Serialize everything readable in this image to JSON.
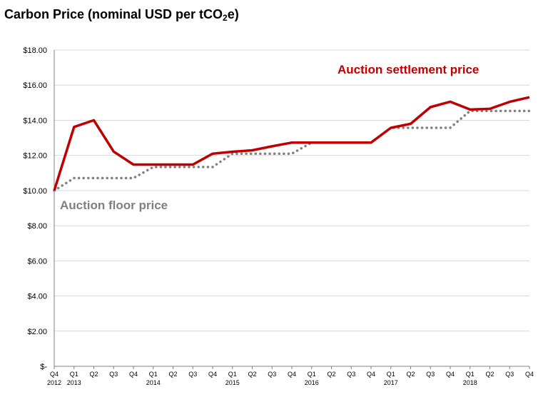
{
  "title": {
    "main": "Carbon Price (nominal USD per tCO",
    "sub": "2",
    "suffix": "e)"
  },
  "chart_data": {
    "type": "line",
    "title": "Carbon Price (nominal USD per tCO2e)",
    "ylim": [
      0,
      18
    ],
    "yticks": [
      0,
      2,
      4,
      6,
      8,
      10,
      12,
      14,
      16,
      18
    ],
    "ytick_labels": [
      "$-",
      "$2.00",
      "$4.00",
      "$6.00",
      "$8.00",
      "$10.00",
      "$12.00",
      "$14.00",
      "$16.00",
      "$18.00"
    ],
    "grid": true,
    "categories": [
      {
        "q": "Q4",
        "y": "2012"
      },
      {
        "q": "Q1",
        "y": "2013"
      },
      {
        "q": "Q2",
        "y": ""
      },
      {
        "q": "Q3",
        "y": ""
      },
      {
        "q": "Q4",
        "y": ""
      },
      {
        "q": "Q1",
        "y": "2014"
      },
      {
        "q": "Q2",
        "y": ""
      },
      {
        "q": "Q3",
        "y": ""
      },
      {
        "q": "Q4",
        "y": ""
      },
      {
        "q": "Q1",
        "y": "2015"
      },
      {
        "q": "Q2",
        "y": ""
      },
      {
        "q": "Q3",
        "y": ""
      },
      {
        "q": "Q4",
        "y": ""
      },
      {
        "q": "Q1",
        "y": "2016"
      },
      {
        "q": "Q2",
        "y": ""
      },
      {
        "q": "Q3",
        "y": ""
      },
      {
        "q": "Q4",
        "y": ""
      },
      {
        "q": "Q1",
        "y": "2017"
      },
      {
        "q": "Q2",
        "y": ""
      },
      {
        "q": "Q3",
        "y": ""
      },
      {
        "q": "Q4",
        "y": ""
      },
      {
        "q": "Q1",
        "y": "2018"
      },
      {
        "q": "Q2",
        "y": ""
      },
      {
        "q": "Q3",
        "y": ""
      },
      {
        "q": "Q4",
        "y": ""
      }
    ],
    "series": [
      {
        "name": "Auction settlement price",
        "color": "#c00000",
        "style": "solid",
        "values": [
          10.0,
          13.62,
          14.0,
          12.22,
          11.48,
          11.48,
          11.48,
          11.48,
          12.1,
          12.21,
          12.29,
          12.52,
          12.73,
          12.73,
          12.73,
          12.73,
          12.73,
          13.57,
          13.8,
          14.75,
          15.06,
          14.61,
          14.65,
          15.05,
          15.31
        ]
      },
      {
        "name": "Auction floor price",
        "color": "#808080",
        "style": "dotted",
        "values": [
          10.0,
          10.71,
          10.71,
          10.71,
          10.71,
          11.34,
          11.34,
          11.34,
          11.34,
          12.1,
          12.1,
          12.1,
          12.1,
          12.73,
          12.73,
          12.73,
          12.73,
          13.57,
          13.57,
          13.57,
          13.57,
          14.53,
          14.53,
          14.53,
          14.53
        ]
      }
    ]
  }
}
